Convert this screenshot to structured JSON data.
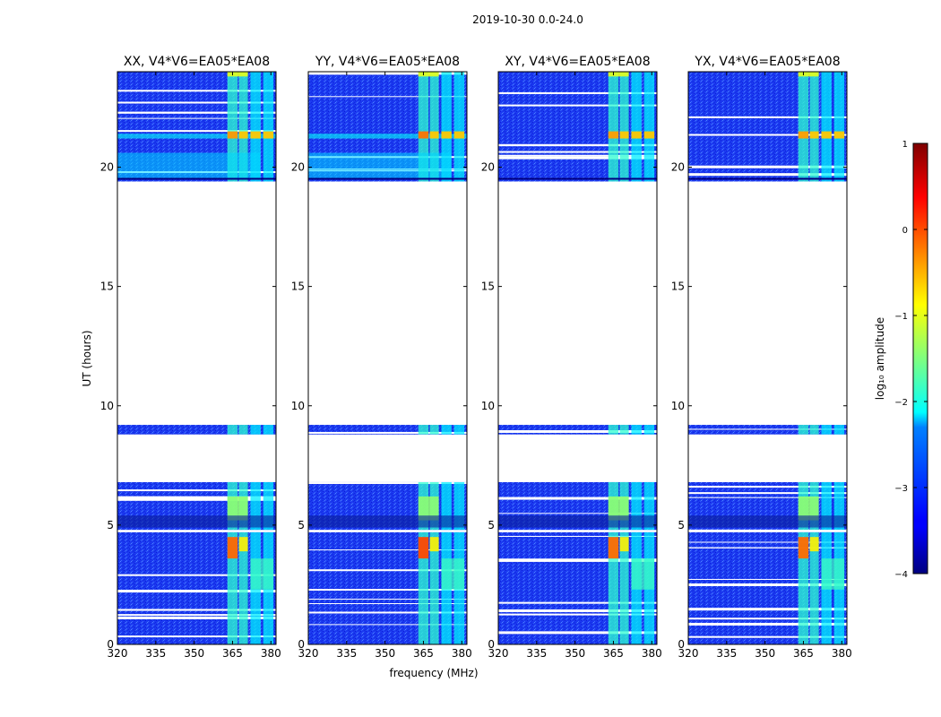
{
  "chart_data": {
    "type": "heatmap",
    "title": "2019-10-30 0.0-24.0",
    "xlabel": "frequency (MHz)",
    "ylabel": "UT (hours)",
    "xlim": [
      320,
      382
    ],
    "ylim": [
      0,
      24
    ],
    "xticks": [
      "320",
      "335",
      "350",
      "365",
      "380"
    ],
    "yticks": [
      "0",
      "5",
      "10",
      "15",
      "20"
    ],
    "colormap": "jet",
    "colorbar": {
      "label": "log₁₀ amplitude",
      "range": [
        -4,
        1
      ],
      "ticks": [
        "−4",
        "−3",
        "−2",
        "−1",
        "0",
        "1"
      ]
    },
    "data_time_ranges_hours": [
      [
        0,
        4.7
      ],
      [
        4.8,
        6.8
      ],
      [
        8.8,
        9.2
      ],
      [
        19.4,
        24
      ]
    ],
    "rfi_band_mhz": [
      [
        363,
        367
      ],
      [
        367.5,
        371
      ],
      [
        372,
        376
      ],
      [
        377,
        381
      ]
    ],
    "panels": [
      {
        "name": "XX, V4*V6=EA05*EA08",
        "bright_level": 0.55,
        "base_level": -3.0
      },
      {
        "name": "YY, V4*V6=EA05*EA08",
        "bright_level": 0.85,
        "base_level": -3.0
      },
      {
        "name": "XY, V4*V6=EA05*EA08",
        "bright_level": 0.5,
        "base_level": -3.2
      },
      {
        "name": "YX, V4*V6=EA05*EA08",
        "bright_level": 0.5,
        "base_level": -3.2
      }
    ]
  }
}
